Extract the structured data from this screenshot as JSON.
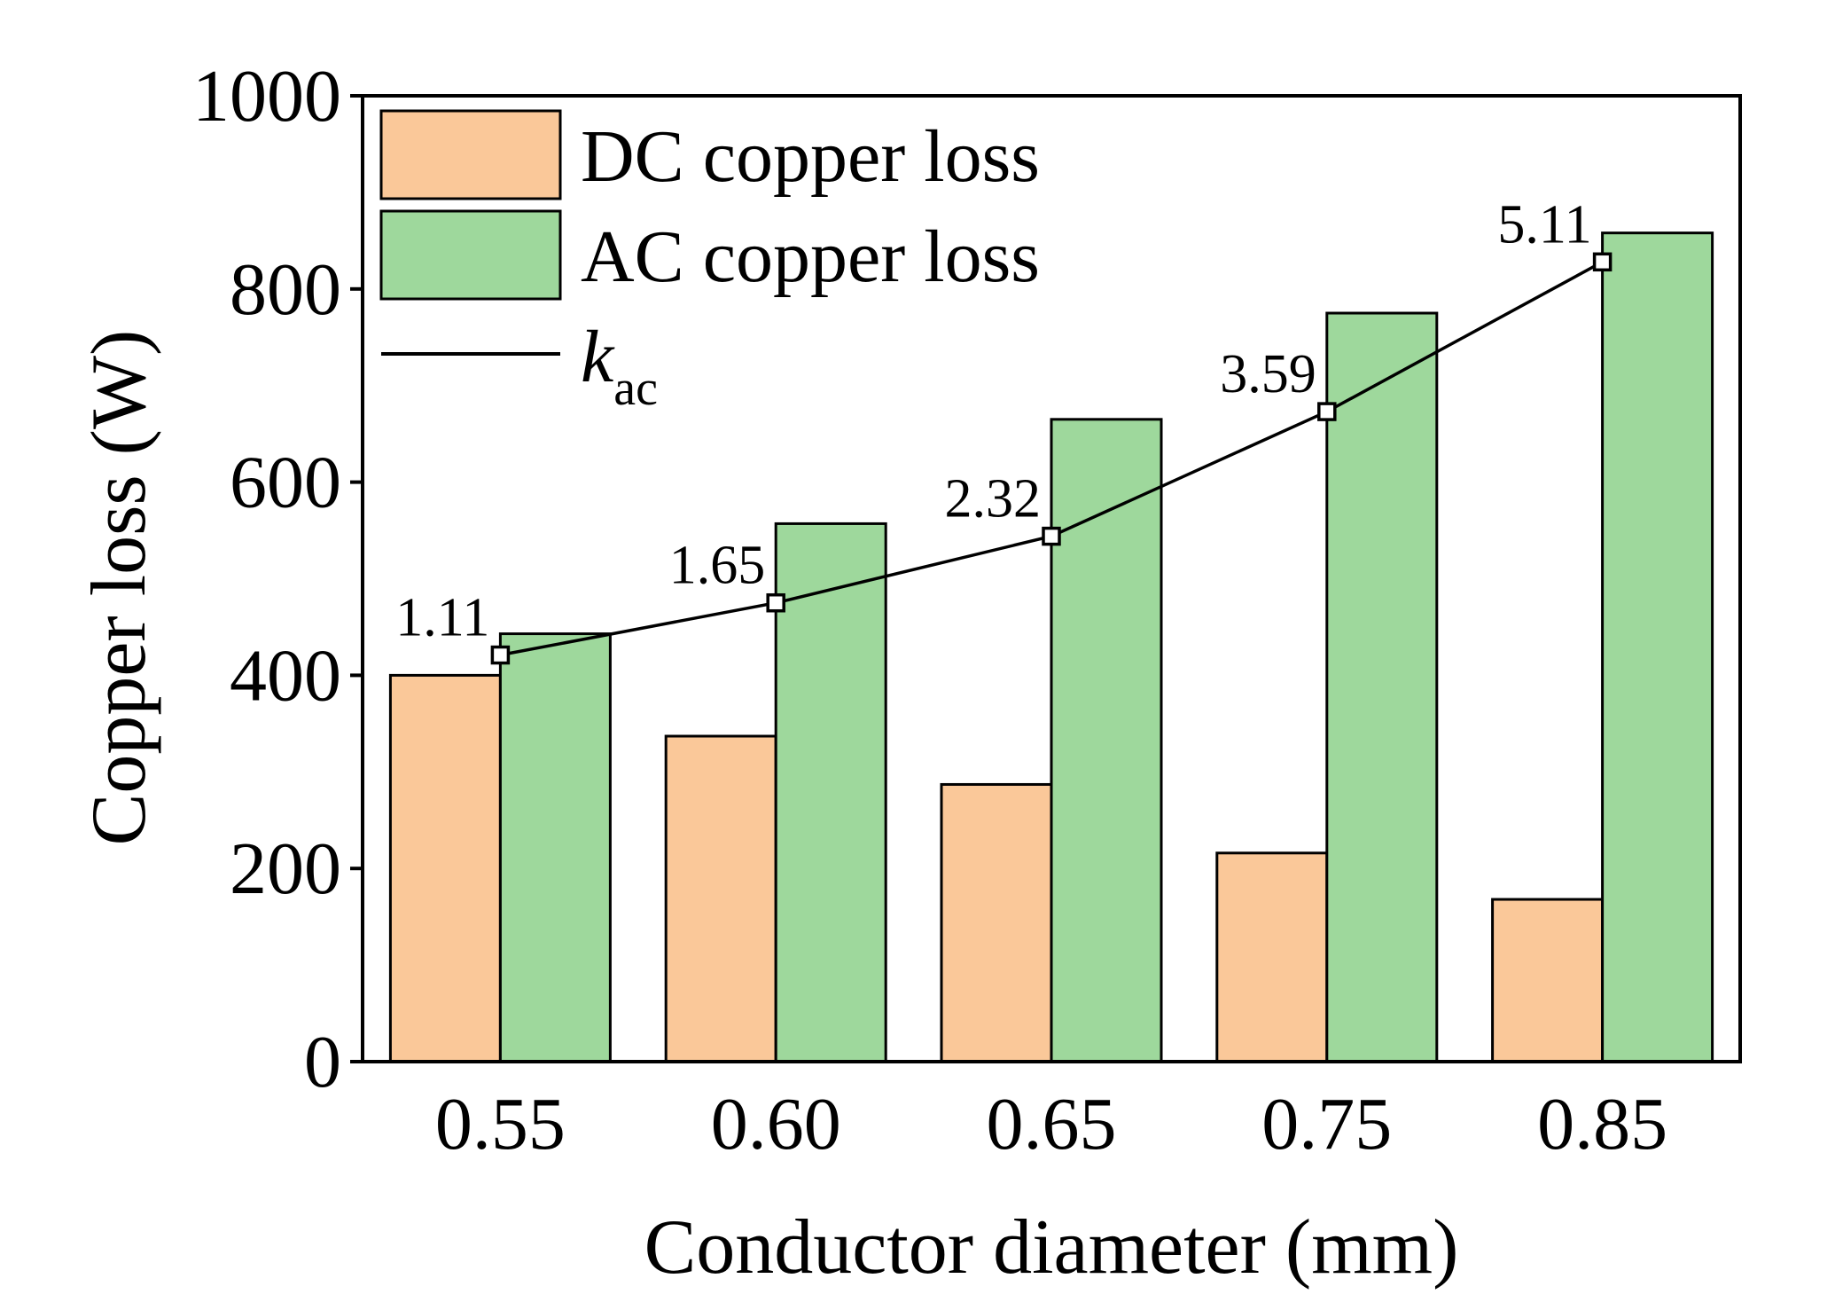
{
  "chart_data": {
    "type": "bar",
    "title": "",
    "xlabel": "Conductor diameter (mm)",
    "ylabel": "Copper loss (W)",
    "categories": [
      "0.55",
      "0.60",
      "0.65",
      "0.75",
      "0.85"
    ],
    "ylim": [
      0,
      1000
    ],
    "yticks": [
      0,
      200,
      400,
      600,
      800,
      1000
    ],
    "ytick_labels": [
      "0",
      "200",
      "400",
      "600",
      "800",
      "1000"
    ],
    "grid": false,
    "legend_position": "top-left",
    "series": [
      {
        "name": "DC copper loss",
        "type": "bar",
        "color": "#FAC899",
        "values": [
          400,
          337,
          287,
          216,
          168
        ]
      },
      {
        "name": "AC copper loss",
        "type": "bar",
        "color": "#9ED89C",
        "values": [
          443,
          557,
          665,
          775,
          858
        ]
      },
      {
        "name": "kac",
        "legend_main": "k",
        "legend_sub": "ac",
        "type": "line",
        "color": "#000000",
        "values": [
          1.11,
          1.65,
          2.32,
          3.59,
          5.11
        ],
        "left_axis_equivalent": [
          421,
          475,
          544,
          673,
          828
        ],
        "data_labels": [
          "1.11",
          "1.65",
          "2.32",
          "3.59",
          "5.11"
        ]
      }
    ]
  }
}
